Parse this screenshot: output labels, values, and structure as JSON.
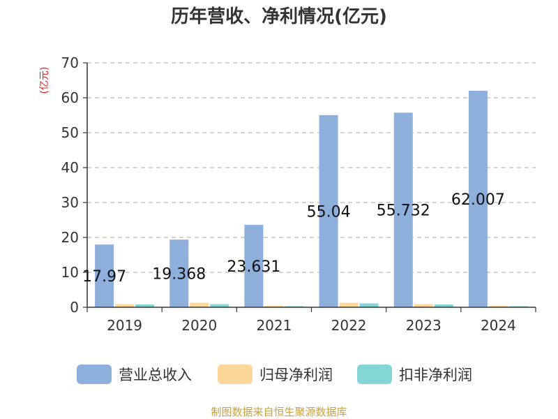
{
  "chart_data": {
    "type": "bar",
    "title": "历年营收、净利情况(亿元)",
    "unit_label": "(亿元)",
    "categories": [
      "2019",
      "2020",
      "2021",
      "2022",
      "2023",
      "2024"
    ],
    "series": [
      {
        "name": "营业总收入",
        "color": "#8EAEDB",
        "values": [
          17.97,
          19.368,
          23.631,
          55.04,
          55.732,
          62.007
        ]
      },
      {
        "name": "归母净利润",
        "color": "#FDD799",
        "values": [
          0.9,
          1.3,
          0.4,
          1.3,
          0.9,
          0.4
        ]
      },
      {
        "name": "扣非净利润",
        "color": "#84D5D6",
        "values": [
          0.8,
          0.9,
          0.3,
          1.1,
          0.8,
          0.3
        ]
      }
    ],
    "data_labels": [
      "17.97",
      "19.368",
      "23.631",
      "55.04",
      "55.732",
      "62.007"
    ],
    "yticks": [
      "0",
      "10",
      "20",
      "30",
      "40",
      "50",
      "60",
      "70"
    ],
    "ylim": [
      0,
      70
    ],
    "grid": true,
    "legend_position": "bottom"
  },
  "source": "制图数据来自恒生聚源数据库",
  "colors": {
    "title": "#333333",
    "unit": "#E02020",
    "source": "#C8A040",
    "grid": "#BBBBBB",
    "axis": "#333333"
  }
}
